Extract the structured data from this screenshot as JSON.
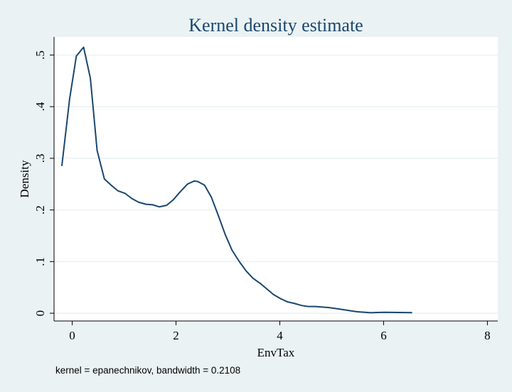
{
  "chart_data": {
    "type": "line",
    "title": "Kernel density estimate",
    "xlabel": "EnvTax",
    "ylabel": "Density",
    "note": "kernel = epanechnikov, bandwidth = 0.2108",
    "xlim": [
      -0.35,
      8.2
    ],
    "ylim": [
      -0.015,
      0.535
    ],
    "xticks": [
      0,
      2,
      4,
      6,
      8
    ],
    "xtick_labels": [
      "0",
      "2",
      "4",
      "6",
      "8"
    ],
    "yticks": [
      0,
      0.1,
      0.2,
      0.3,
      0.4,
      0.5
    ],
    "ytick_labels": [
      "0",
      ".1",
      ".2",
      ".3",
      ".4",
      ".5"
    ],
    "grid": true,
    "colors": {
      "line": "#1a476f",
      "background": "#eaf2f3",
      "plot_area": "#ffffff",
      "grid": "#eaf2f3",
      "title": "#1a476f"
    },
    "series": [
      {
        "x": [
          -0.2,
          -0.05,
          0.08,
          0.22,
          0.35,
          0.48,
          0.62,
          0.75,
          0.88,
          1.02,
          1.15,
          1.28,
          1.42,
          1.55,
          1.68,
          1.82,
          1.95,
          2.08,
          2.22,
          2.35,
          2.42,
          2.55,
          2.68,
          2.82,
          2.95,
          3.08,
          3.22,
          3.35,
          3.48,
          3.62,
          3.75,
          3.88,
          4.02,
          4.15,
          4.28,
          4.42,
          4.55,
          4.68,
          4.82,
          4.95,
          5.08,
          5.22,
          5.35,
          5.48,
          5.62,
          5.75,
          5.88,
          6.02,
          6.15,
          6.28,
          6.42,
          6.55
        ],
        "y": [
          0.285,
          0.415,
          0.498,
          0.515,
          0.455,
          0.315,
          0.26,
          0.248,
          0.237,
          0.232,
          0.222,
          0.215,
          0.211,
          0.21,
          0.206,
          0.209,
          0.22,
          0.235,
          0.25,
          0.256,
          0.255,
          0.248,
          0.225,
          0.188,
          0.152,
          0.122,
          0.1,
          0.082,
          0.068,
          0.058,
          0.047,
          0.036,
          0.028,
          0.022,
          0.019,
          0.015,
          0.013,
          0.013,
          0.012,
          0.011,
          0.009,
          0.007,
          0.005,
          0.003,
          0.002,
          0.001,
          0.0015,
          0.0018,
          0.0016,
          0.0015,
          0.0013,
          0.0012
        ]
      }
    ]
  }
}
